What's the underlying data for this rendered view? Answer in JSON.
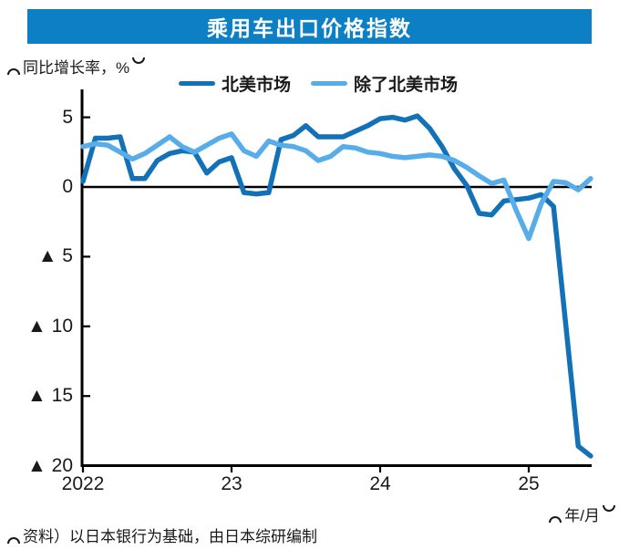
{
  "header": {
    "title": "乘用车出口价格指数",
    "bar_color": "#0d80c5"
  },
  "y_axis": {
    "unit_open": "（",
    "unit_label": "同比增长率，%",
    "unit_close": "）",
    "tick_labels": [
      "5",
      "0",
      "▲ 5",
      "▲ 10",
      "▲ 15",
      "▲ 20"
    ]
  },
  "x_axis": {
    "tick_labels": [
      "2022",
      "23",
      "24",
      "25"
    ],
    "unit_open": "（",
    "unit_label": "年/月",
    "unit_close": "）"
  },
  "legend": {
    "items": [
      {
        "label": "北美市场",
        "color": "#1371b8"
      },
      {
        "label": "除了北美市场",
        "color": "#57ade9"
      }
    ]
  },
  "source_note": {
    "open": "（",
    "text": "资料）以日本银行为基础，由日本综研编制"
  },
  "colors": {
    "axis": "#000000",
    "text": "#1a1a1a",
    "background": "#ffffff"
  },
  "chart_data": {
    "type": "line",
    "title": "乘用车出口价格指数",
    "ylabel": "同比增长率，%",
    "xlabel": "年/月",
    "frequency": "monthly",
    "x_start": "2022-01",
    "x_end": "2025-06",
    "x_tick_positions_months": [
      0,
      12,
      24,
      36
    ],
    "x_tick_labels": [
      "2022",
      "23",
      "24",
      "25"
    ],
    "y_ticks": [
      5,
      0,
      -5,
      -10,
      -15,
      -20
    ],
    "ylim": [
      -20,
      6.9
    ],
    "negative_notation": "▲",
    "grid": false,
    "legend_position": "top",
    "series": [
      {
        "name": "北美市场",
        "color": "#1371b8",
        "values": [
          0.4,
          3.5,
          3.5,
          3.6,
          0.6,
          0.6,
          1.9,
          2.4,
          2.6,
          2.5,
          1.0,
          1.8,
          2.1,
          -0.4,
          -0.5,
          -0.4,
          3.4,
          3.7,
          4.4,
          3.6,
          3.6,
          3.6,
          4.0,
          4.4,
          4.9,
          5.0,
          4.8,
          5.1,
          4.2,
          2.9,
          1.3,
          0.1,
          -1.9,
          -2.0,
          -1.0,
          -0.9,
          -0.8,
          -0.55,
          -1.4,
          -10.0,
          -18.6,
          -19.3
        ]
      },
      {
        "name": "除了北美市场",
        "color": "#57ade9",
        "values": [
          2.9,
          3.1,
          3.0,
          2.5,
          2.0,
          2.4,
          3.0,
          3.6,
          2.9,
          2.5,
          3.0,
          3.5,
          3.8,
          2.6,
          2.2,
          3.3,
          3.0,
          2.9,
          2.6,
          1.9,
          2.2,
          2.9,
          2.8,
          2.5,
          2.4,
          2.2,
          2.1,
          2.2,
          2.3,
          2.2,
          1.9,
          1.4,
          0.8,
          0.25,
          0.5,
          -1.7,
          -3.7,
          -1.2,
          0.4,
          0.3,
          -0.2,
          0.6
        ]
      }
    ]
  }
}
